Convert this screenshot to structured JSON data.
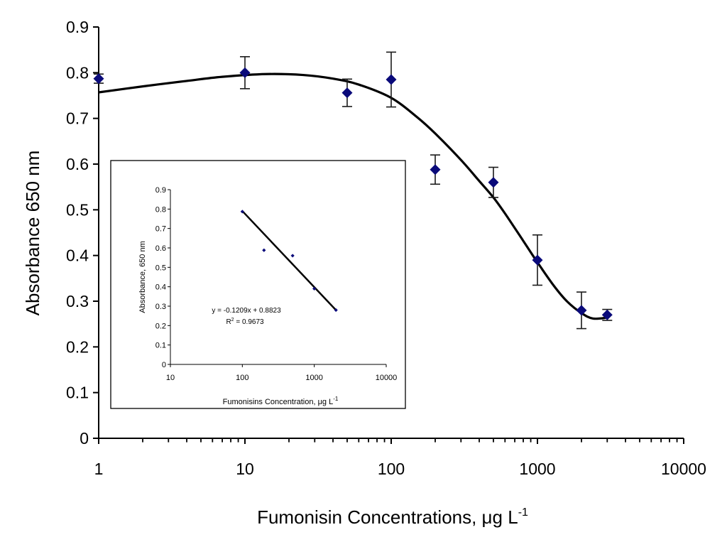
{
  "chart_data": [
    {
      "type": "scatter",
      "xscale": "log",
      "xlabel": "Fumonisin Concentrations, μg L",
      "xlabel_sup": "-1",
      "ylabel": "Absorbance 650 nm",
      "xlim": [
        1,
        10000
      ],
      "ylim": [
        0,
        0.9
      ],
      "xtick_labels": [
        "1",
        "10",
        "100",
        "1000",
        "10000"
      ],
      "ytick_labels": [
        "0",
        "0.1",
        "0.2",
        "0.3",
        "0.4",
        "0.5",
        "0.6",
        "0.7",
        "0.8",
        "0.9"
      ],
      "grid": false,
      "marker_color": "#0a0a7a",
      "curve_color": "#000000",
      "points": [
        {
          "x": 1,
          "y": 0.787,
          "err": 0.01
        },
        {
          "x": 10,
          "y": 0.8,
          "err": 0.035
        },
        {
          "x": 50,
          "y": 0.756,
          "err": 0.03
        },
        {
          "x": 100,
          "y": 0.785,
          "err": 0.06
        },
        {
          "x": 200,
          "y": 0.588,
          "err": 0.032
        },
        {
          "x": 500,
          "y": 0.56,
          "err": 0.033
        },
        {
          "x": 1000,
          "y": 0.39,
          "err": 0.055
        },
        {
          "x": 2000,
          "y": 0.28,
          "err": 0.04
        },
        {
          "x": 3000,
          "y": 0.27,
          "err": 0.012
        }
      ],
      "fit_curve": [
        {
          "x": 1,
          "y": 0.757
        },
        {
          "x": 2,
          "y": 0.77
        },
        {
          "x": 4,
          "y": 0.782
        },
        {
          "x": 7,
          "y": 0.791
        },
        {
          "x": 14,
          "y": 0.797
        },
        {
          "x": 25,
          "y": 0.795
        },
        {
          "x": 40,
          "y": 0.787
        },
        {
          "x": 60,
          "y": 0.774
        },
        {
          "x": 100,
          "y": 0.745
        },
        {
          "x": 150,
          "y": 0.703
        },
        {
          "x": 200,
          "y": 0.667
        },
        {
          "x": 300,
          "y": 0.609
        },
        {
          "x": 400,
          "y": 0.563
        },
        {
          "x": 500,
          "y": 0.527
        },
        {
          "x": 600,
          "y": 0.492
        },
        {
          "x": 800,
          "y": 0.432
        },
        {
          "x": 1000,
          "y": 0.385
        },
        {
          "x": 1300,
          "y": 0.333
        },
        {
          "x": 1600,
          "y": 0.299
        },
        {
          "x": 2000,
          "y": 0.274
        },
        {
          "x": 2400,
          "y": 0.262
        },
        {
          "x": 3000,
          "y": 0.264
        }
      ]
    },
    {
      "type": "scatter",
      "xscale": "log",
      "xlabel": "Fumonisins Concentration, μg L",
      "xlabel_sup": "-1",
      "ylabel": "Absorbance, 650 nm",
      "xlim": [
        10,
        10000
      ],
      "ylim": [
        0,
        0.9
      ],
      "xtick_labels": [
        "10",
        "100",
        "1000",
        "10000"
      ],
      "ytick_labels": [
        "0",
        "0.1",
        "0.2",
        "0.3",
        "0.4",
        "0.5",
        "0.6",
        "0.7",
        "0.8",
        "0.9"
      ],
      "grid": false,
      "marker_color": "#0a0a7a",
      "points": [
        {
          "x": 100,
          "y": 0.787
        },
        {
          "x": 200,
          "y": 0.588
        },
        {
          "x": 500,
          "y": 0.56
        },
        {
          "x": 1000,
          "y": 0.39
        },
        {
          "x": 2000,
          "y": 0.28
        }
      ],
      "trendline": {
        "x": [
          100,
          2000
        ],
        "y": [
          0.79,
          0.28
        ]
      },
      "equation": "y = -0.1209x + 0.8823",
      "r2_prefix": "R",
      "r2_sup": "2",
      "r2_value": " = 0.9673"
    }
  ]
}
